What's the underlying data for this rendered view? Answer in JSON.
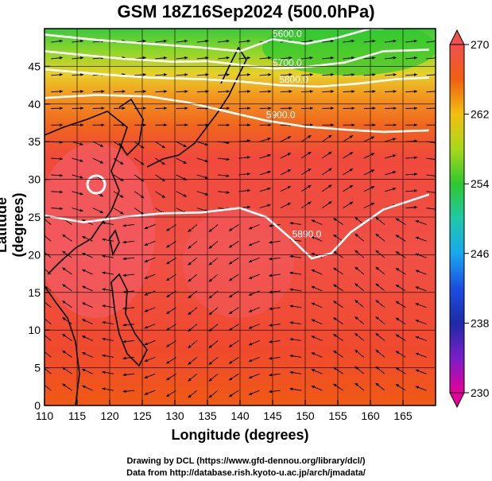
{
  "title": "GSM 18Z16Sep2024 (500.0hPa)",
  "xaxis": {
    "label": "Longitude (degrees)",
    "range": [
      110,
      170
    ],
    "ticks": [
      110,
      115,
      120,
      125,
      130,
      135,
      140,
      145,
      150,
      155,
      160,
      165
    ]
  },
  "yaxis": {
    "label": "Latitude  (degrees)",
    "range": [
      0,
      50
    ],
    "ticks": [
      0,
      5,
      10,
      15,
      20,
      25,
      30,
      35,
      40,
      45
    ]
  },
  "colorbar": {
    "range": [
      230,
      270
    ],
    "ticks": [
      230,
      238,
      246,
      254,
      262,
      270
    ]
  },
  "contours": [
    {
      "label": "5600.0",
      "points": [
        [
          110,
          49.2
        ],
        [
          118,
          48.5
        ],
        [
          126,
          48
        ],
        [
          134,
          47.5
        ],
        [
          140,
          47
        ],
        [
          145,
          48.6
        ],
        [
          150,
          48
        ],
        [
          155,
          48.8
        ],
        [
          160,
          50
        ],
        [
          162,
          50
        ]
      ]
    },
    {
      "label": "5700.0",
      "points": [
        [
          110,
          47
        ],
        [
          116,
          46.5
        ],
        [
          122,
          46
        ],
        [
          130,
          45.6
        ],
        [
          135,
          45.7
        ],
        [
          140,
          45.2
        ],
        [
          145,
          44.7
        ],
        [
          150,
          44.9
        ],
        [
          156,
          45.5
        ],
        [
          162,
          47
        ],
        [
          169,
          47.2
        ]
      ]
    },
    {
      "label": "5800.0",
      "points": [
        [
          110,
          44.6
        ],
        [
          118,
          44
        ],
        [
          126,
          43.5
        ],
        [
          134,
          43.3
        ],
        [
          140,
          43
        ],
        [
          146,
          42.5
        ],
        [
          152,
          42.3
        ],
        [
          158,
          42.7
        ],
        [
          164,
          43.3
        ],
        [
          169,
          43.5
        ]
      ]
    },
    {
      "label": "5900.0",
      "points": [
        [
          110,
          40.8
        ],
        [
          118,
          41.2
        ],
        [
          126,
          41
        ],
        [
          132,
          40.2
        ],
        [
          138,
          39
        ],
        [
          144,
          37.8
        ],
        [
          150,
          37
        ],
        [
          156,
          36.6
        ],
        [
          162,
          36.3
        ],
        [
          169,
          36.5
        ]
      ]
    },
    {
      "label": "5890.0",
      "points": [
        [
          110,
          25.2
        ],
        [
          116,
          24.3
        ],
        [
          122,
          25
        ],
        [
          128,
          25.5
        ],
        [
          134,
          25.6
        ],
        [
          140,
          26.2
        ],
        [
          144,
          25
        ],
        [
          148,
          22
        ],
        [
          151,
          19.5
        ],
        [
          154,
          20.2
        ],
        [
          157,
          23
        ],
        [
          162,
          26
        ],
        [
          169,
          28
        ]
      ]
    }
  ],
  "cells": [
    {
      "label": "5890.0"
    }
  ],
  "credits": [
    "Drawing by DCL (https://www.gfd-dennou.org/library/dcl/)",
    "Data from http://database.rish.kyoto-u.ac.jp/arch/jmadata/"
  ]
}
